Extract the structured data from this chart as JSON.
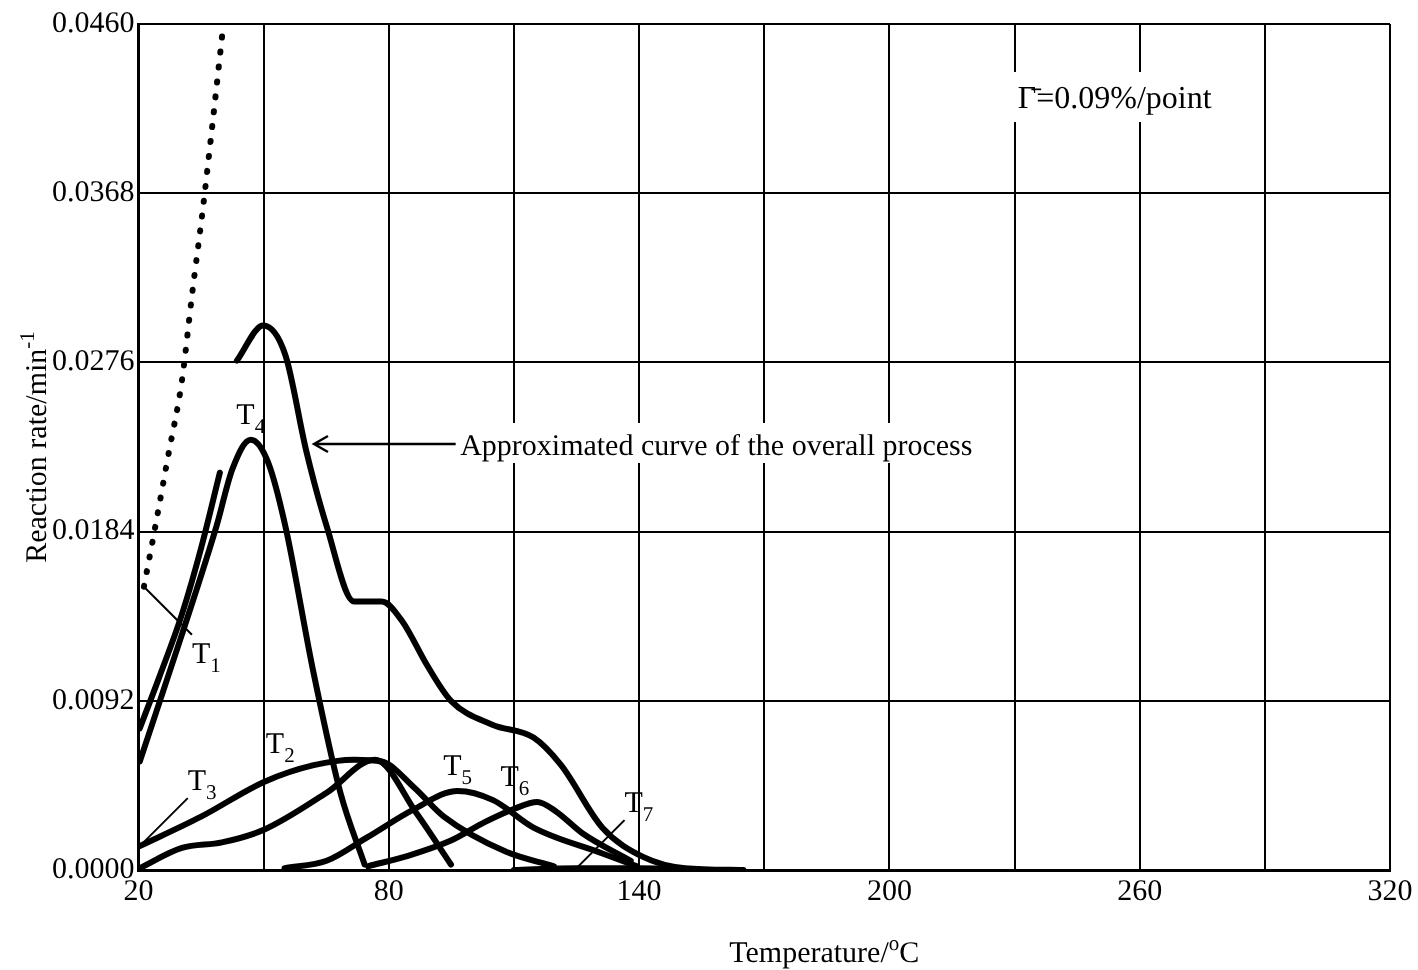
{
  "chart_data": {
    "type": "line",
    "xlabel": "Temperature/$^{o}$C",
    "ylabel": "Reaction rate/min$^{-1}$",
    "xlim": [
      20,
      320
    ],
    "xticks": [
      20,
      {
        "value": 50,
        "label": null
      },
      80,
      {
        "value": 110,
        "label": null
      },
      140,
      {
        "value": 170,
        "label": null
      },
      200,
      {
        "value": 230,
        "label": null
      },
      260,
      {
        "value": 290,
        "label": null
      },
      320
    ],
    "ylim": [
      0,
      0.046
    ],
    "yticks": [
      {
        "value": 0,
        "label": "0.0000"
      },
      0.0092,
      0.0184,
      0.0276,
      0.0368,
      {
        "value": 0.046,
        "label": "0.0460"
      }
    ],
    "grid": true,
    "legend": false,
    "marker": "none",
    "series": [
      {
        "color": "#000000",
        "line_style": "dotted",
        "x": [
          21.3,
          23.8,
          27.1,
          30.4,
          32.9,
          35.4,
          37.8,
          40.3
        ],
        "values": [
          0.0154,
          0.0184,
          0.0225,
          0.0266,
          0.0314,
          0.0359,
          0.0407,
          0.0459
        ]
      },
      {
        "color": "#000000",
        "x": [
          20.3,
          25,
          30.4,
          35,
          39.5
        ],
        "values": [
          0.0077,
          0.0105,
          0.0139,
          0.0175,
          0.0216
        ]
      },
      {
        "color": "#000000",
        "x": [
          20.3,
          30.4,
          38.7,
          42.5,
          46.9,
          51,
          55.2,
          61.8,
          68.4,
          74.2
        ],
        "values": [
          0.0059,
          0.0128,
          0.0187,
          0.0218,
          0.0234,
          0.0222,
          0.0187,
          0.0109,
          0.0042,
          0.0003
        ]
      },
      {
        "color": "#000000",
        "x": [
          43.6,
          49.9,
          55.2,
          60.2,
          65.1,
          71.7,
          78.3,
          83.3,
          89,
          94.9,
          104.8,
          114.7,
          121.3,
          131.2,
          141.1,
          151,
          165
        ],
        "values": [
          0.0277,
          0.0296,
          0.028,
          0.0228,
          0.0187,
          0.0146,
          0.0146,
          0.0135,
          0.0112,
          0.0092,
          0.0079,
          0.0072,
          0.0057,
          0.0023,
          0.0007,
          0.0001,
          0
        ]
      },
      {
        "color": "#000000",
        "x": [
          20.3,
          35,
          50.2,
          62,
          71.7,
          78.3,
          86,
          93.2,
          108,
          119.6
        ],
        "values": [
          0.0013,
          0.0029,
          0.0048,
          0.0057,
          0.006,
          0.0059,
          0.0045,
          0.0029,
          0.001,
          0.0002
        ]
      },
      {
        "color": "#000000",
        "x": [
          20.3,
          30.4,
          40,
          50.2,
          65.1,
          76.7,
          86.6,
          94.9
        ],
        "values": [
          0.0001,
          0.0012,
          0.0015,
          0.0022,
          0.0042,
          0.006,
          0.0031,
          0.0003
        ]
      },
      {
        "color": "#000000",
        "x": [
          55,
          65.1,
          75,
          86,
          96.5,
          105,
          114.7,
          131.2,
          139.5
        ],
        "values": [
          0.0001,
          0.0005,
          0.0018,
          0.0033,
          0.0043,
          0.0038,
          0.0023,
          0.0009,
          0.0002
        ]
      },
      {
        "color": "#000000",
        "x": [
          75,
          85,
          94.9,
          103,
          109.8,
          115.6,
          120,
          126.4,
          138
        ],
        "values": [
          0.0002,
          0.0008,
          0.0016,
          0.0026,
          0.0033,
          0.0037,
          0.0032,
          0.002,
          0.0005
        ]
      },
      {
        "color": "#000000",
        "x": [
          110,
          125,
          140,
          155
        ],
        "values": [
          0,
          0.0001,
          0.0001,
          0
        ]
      }
    ],
    "annotations": [
      {
        "text": "T$_{1}$",
        "x": 21.3,
        "y": 0.0154
      },
      {
        "text": "T$_{4}$",
        "x": 46.9,
        "y": 0.0234
      },
      {
        "text": "T$_{2}$",
        "x": 65.1,
        "y": 0.0042
      },
      {
        "text": "T$_{3}$",
        "x": 20.3,
        "y": 0.0013
      },
      {
        "text": "T$_{5}$",
        "x": 96.5,
        "y": 0.0043
      },
      {
        "text": "T$_{6}$",
        "x": 115.6,
        "y": 0.0037
      },
      {
        "text": "T$_{7}$",
        "x": 125,
        "y": 0.0001
      },
      "Approximated curve of the overall process",
      "Γ̄=0.09%/point"
    ]
  }
}
